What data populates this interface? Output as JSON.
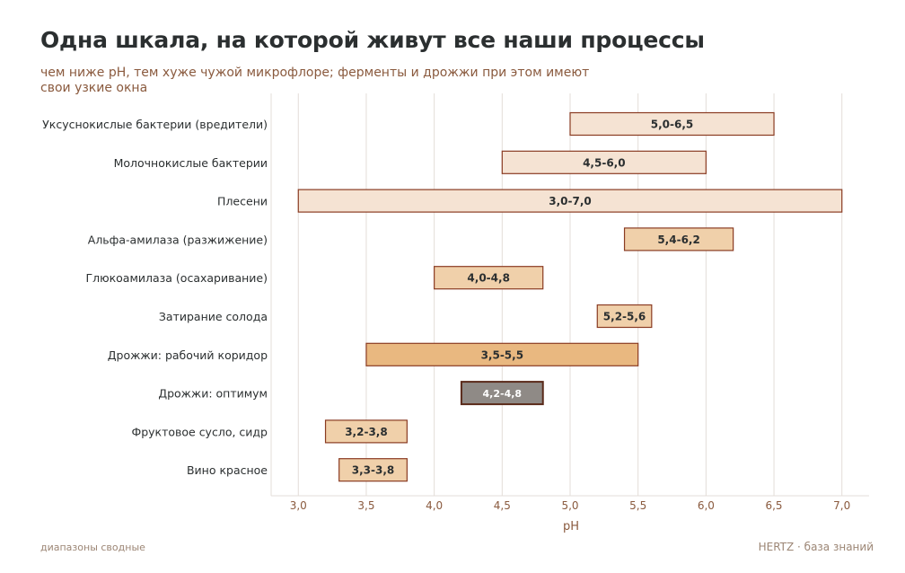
{
  "title": "Одна шкала, на которой живут все наши процессы",
  "subtitle": "чем ниже pH, тем хуже чужой микрофлоре; ферменты и дрожжи при этом имеют свои узкие окна",
  "footer_left": "диапазоны сводные",
  "footer_right": "HERTZ · база знаний",
  "colors": {
    "pale": "#f5e3d3",
    "light": "#f0d0aa",
    "medium": "#e9b880",
    "dark": "#8f8a86",
    "edge": "#8a3b22",
    "grid": "#e3ddd8"
  },
  "chart_data": {
    "type": "bar",
    "orientation": "horizontal",
    "xlabel": "pH",
    "xlim": [
      2.8,
      7.2
    ],
    "xticks": [
      "3,0",
      "3,5",
      "4,0",
      "4,5",
      "5,0",
      "5,5",
      "6,0",
      "6,5",
      "7,0"
    ],
    "xtick_values": [
      3.0,
      3.5,
      4.0,
      4.5,
      5.0,
      5.5,
      6.0,
      6.5,
      7.0
    ],
    "grid": "vertical",
    "items": [
      {
        "name": "Уксуснокислые бактерии (вредители)",
        "start": 5.0,
        "end": 6.5,
        "label": "5,0-6,5",
        "color": "pale"
      },
      {
        "name": "Молочнокислые бактерии",
        "start": 4.5,
        "end": 6.0,
        "label": "4,5-6,0",
        "color": "pale"
      },
      {
        "name": "Плесени",
        "start": 3.0,
        "end": 7.0,
        "label": "3,0-7,0",
        "color": "pale"
      },
      {
        "name": "Альфа-амилаза (разжижение)",
        "start": 5.4,
        "end": 6.2,
        "label": "5,4-6,2",
        "color": "light"
      },
      {
        "name": "Глюкоамилаза (осахаривание)",
        "start": 4.0,
        "end": 4.8,
        "label": "4,0-4,8",
        "color": "light"
      },
      {
        "name": "Затирание солода",
        "start": 5.2,
        "end": 5.6,
        "label": "5,2-5,6",
        "color": "light"
      },
      {
        "name": "Дрожжи: рабочий коридор",
        "start": 3.5,
        "end": 5.5,
        "label": "3,5-5,5",
        "color": "medium"
      },
      {
        "name": "Дрожжи: оптимум",
        "start": 4.2,
        "end": 4.8,
        "label": "4,2-4,8",
        "color": "dark"
      },
      {
        "name": "Фруктовое сусло, сидр",
        "start": 3.2,
        "end": 3.8,
        "label": "3,2-3,8",
        "color": "light"
      },
      {
        "name": "Вино красное",
        "start": 3.3,
        "end": 3.8,
        "label": "3,3-3,8",
        "color": "light"
      }
    ]
  }
}
